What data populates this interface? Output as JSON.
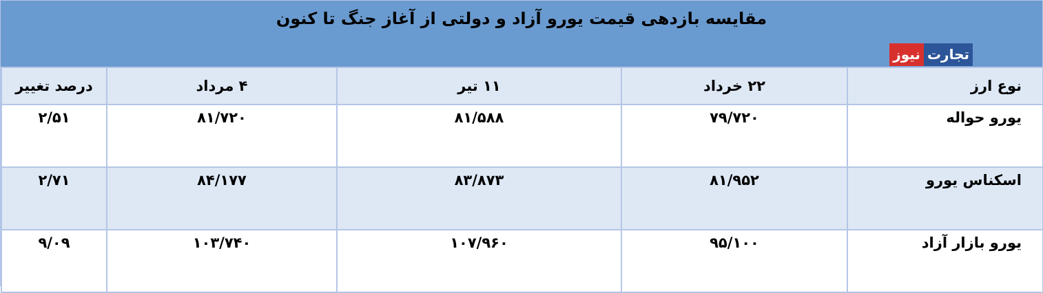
{
  "title": "مقایسه بازدهی قیمت یورو آزاد و دولتی از آغاز جنگ تا کنون",
  "logo": {
    "part1": "تجارت",
    "part2": "نیوز"
  },
  "colors": {
    "title_bg": "#6a9bd0",
    "header_bg": "#dee8f5",
    "border": "#b4c6e7",
    "logo_blue": "#2c5699",
    "logo_red": "#d8312d"
  },
  "headers": [
    "نوع ارز",
    "۲۲ خرداد",
    "۱۱ تیر",
    "۴ مرداد",
    "درصد تغییر"
  ],
  "rows": [
    [
      "یورو حواله",
      "۷۹/۷۲۰",
      "۸۱/۵۸۸",
      "۸۱/۷۲۰",
      "۲/۵۱"
    ],
    [
      "اسکناس یورو",
      "۸۱/۹۵۲",
      "۸۳/۸۷۳",
      "۸۴/۱۷۷",
      "۲/۷۱"
    ],
    [
      "یورو بازار آزاد",
      "۹۵/۱۰۰",
      "۱۰۷/۹۶۰",
      "۱۰۳/۷۴۰",
      "۹/۰۹"
    ]
  ]
}
